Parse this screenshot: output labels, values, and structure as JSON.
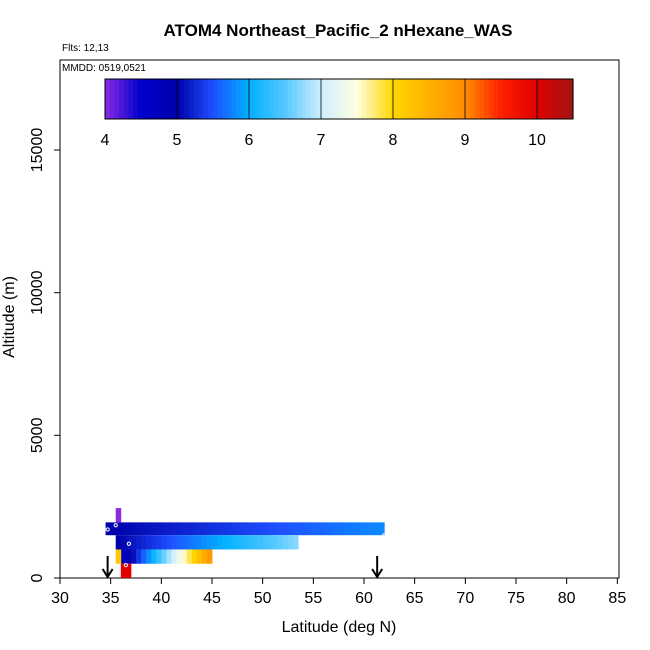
{
  "chart_data": {
    "type": "heatmap",
    "title": "ATOM4 Northeast_Pacific_2 nHexane_WAS",
    "flights_label": "Flts: 12,13",
    "mmdd_label": "MMDD: 0519,0521",
    "xlabel": "Latitude (deg N)",
    "ylabel": "Altitude (m)",
    "xlim": [
      30,
      85
    ],
    "ylim": [
      0,
      18000
    ],
    "x_ticks": [
      30,
      35,
      40,
      45,
      50,
      55,
      60,
      65,
      70,
      75,
      80,
      85
    ],
    "y_ticks": [
      0,
      5000,
      10000,
      15000
    ],
    "colorbar": {
      "range": [
        4,
        10.5
      ],
      "ticks": [
        4,
        5,
        6,
        7,
        8,
        9,
        10
      ],
      "stops": [
        {
          "v": 4.0,
          "color": "#8a2be2"
        },
        {
          "v": 4.5,
          "color": "#0000cd"
        },
        {
          "v": 5.0,
          "color": "#0000aa"
        },
        {
          "v": 5.5,
          "color": "#1e50ff"
        },
        {
          "v": 6.0,
          "color": "#00b0ff"
        },
        {
          "v": 6.5,
          "color": "#55c8ff"
        },
        {
          "v": 7.0,
          "color": "#cfeeff"
        },
        {
          "v": 7.5,
          "color": "#ffffe0"
        },
        {
          "v": 8.0,
          "color": "#ffd700"
        },
        {
          "v": 8.5,
          "color": "#ffb000"
        },
        {
          "v": 9.0,
          "color": "#ff8c00"
        },
        {
          "v": 9.5,
          "color": "#ff2000"
        },
        {
          "v": 10.0,
          "color": "#e00000"
        },
        {
          "v": 10.5,
          "color": "#a01414"
        }
      ]
    },
    "series": [
      {
        "lat_start": 34.5,
        "lat_end": 62,
        "alt_low": 1500,
        "alt_high": 1950,
        "v_start": 5.0,
        "v_end": 5.8
      },
      {
        "lat_start": 35.5,
        "lat_end": 53.5,
        "alt_low": 1000,
        "alt_high": 1500,
        "v_start": 5.0,
        "v_end": 6.7
      },
      {
        "lat_start": 36.0,
        "lat_end": 45.0,
        "alt_low": 500,
        "alt_high": 1000,
        "v_start": 4.6,
        "v_end": 8.8
      },
      {
        "lat_start": 36.0,
        "lat_end": 37.0,
        "alt_low": 0,
        "alt_high": 500,
        "v_start": 10.0,
        "v_end": 10.0
      },
      {
        "lat_start": 35.5,
        "lat_end": 36.0,
        "alt_low": 1950,
        "alt_high": 2450,
        "v_start": 4.0,
        "v_end": 4.0
      },
      {
        "lat_start": 35.5,
        "lat_end": 36.0,
        "alt_low": 500,
        "alt_high": 1000,
        "v_start": 8.2,
        "v_end": 8.2
      }
    ],
    "markers": [
      {
        "lat": 35.5,
        "alt": 1850
      },
      {
        "lat": 34.7,
        "alt": 1700
      },
      {
        "lat": 36.8,
        "alt": 1200
      },
      {
        "lat": 62.0,
        "alt": 1500
      },
      {
        "lat": 36.5,
        "alt": 450
      }
    ],
    "arrows": [
      {
        "lat": 34.7
      },
      {
        "lat": 61.3
      }
    ]
  }
}
